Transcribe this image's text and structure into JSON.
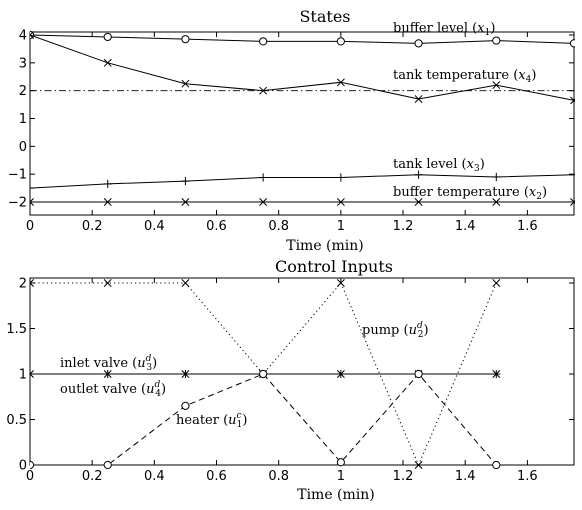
{
  "chart_data": [
    {
      "type": "line",
      "title": "States",
      "xlabel": "Time (min)",
      "ylabel": "",
      "xlim": [
        0,
        1.75
      ],
      "ylim": [
        -2.5,
        4.3
      ],
      "xticks": [
        "0",
        "0.2",
        "0.4",
        "0.6",
        "0.8",
        "1",
        "1.2",
        "1.4",
        "1.6"
      ],
      "yticks": [
        "4",
        "3",
        "2",
        "1",
        "0",
        "−1",
        "−2"
      ],
      "reference_lines": [
        {
          "y": 2,
          "style": "dashdot"
        }
      ],
      "series": [
        {
          "name": "buffer level (x1)",
          "marker": "circle",
          "x": [
            0,
            0.25,
            0.5,
            0.75,
            1.0,
            1.25,
            1.5,
            1.75
          ],
          "y": [
            4.0,
            3.93,
            3.85,
            3.77,
            3.77,
            3.7,
            3.8,
            3.7
          ]
        },
        {
          "name": "tank temperature (x4)",
          "marker": "x",
          "x": [
            0,
            0.25,
            0.5,
            0.75,
            1.0,
            1.25,
            1.5,
            1.75
          ],
          "y": [
            4.0,
            3.0,
            2.25,
            2.0,
            2.3,
            1.7,
            2.2,
            1.65
          ]
        },
        {
          "name": "tank level (x3)",
          "marker": "plus",
          "x": [
            0,
            0.25,
            0.5,
            0.75,
            1.0,
            1.25,
            1.5,
            1.75
          ],
          "y": [
            -1.5,
            -1.35,
            -1.25,
            -1.12,
            -1.12,
            -1.02,
            -1.1,
            -1.02
          ]
        },
        {
          "name": "buffer temperature (x2)",
          "marker": "x",
          "x": [
            0,
            0.25,
            0.5,
            0.75,
            1.0,
            1.25,
            1.5,
            1.75
          ],
          "y": [
            -2.0,
            -2.0,
            -2.0,
            -2.0,
            -2.0,
            -2.0,
            -2.0,
            -2.0
          ]
        }
      ]
    },
    {
      "type": "line",
      "title": "Control Inputs",
      "xlabel": "Time (min)",
      "ylabel": "",
      "xlim": [
        0,
        1.75
      ],
      "ylim": [
        0,
        2.1
      ],
      "xticks": [
        "0",
        "0.2",
        "0.4",
        "0.6",
        "0.8",
        "1",
        "1.2",
        "1.4",
        "1.6"
      ],
      "yticks": [
        "2",
        "1.5",
        "1",
        "0.5",
        "0"
      ],
      "series": [
        {
          "name": "pump (u2d)",
          "style": "dotted",
          "marker": "x",
          "x": [
            0,
            0.25,
            0.5,
            0.75,
            1.0,
            1.25,
            1.5
          ],
          "y": [
            2,
            2,
            2,
            1,
            2,
            0,
            2
          ]
        },
        {
          "name": "inlet valve (u3d)",
          "style": "solid",
          "marker": "x",
          "x": [
            0,
            0.25,
            0.5,
            0.75,
            1.0,
            1.25,
            1.5
          ],
          "y": [
            1,
            1,
            1,
            1,
            1,
            1,
            1
          ]
        },
        {
          "name": "outlet valve (u4d)",
          "style": "solid",
          "marker": "plus",
          "x": [
            0,
            0.25,
            0.5,
            0.75,
            1.0,
            1.25,
            1.5
          ],
          "y": [
            1,
            1,
            1,
            1,
            1,
            1,
            1
          ]
        },
        {
          "name": "heater (u1c)",
          "style": "dashed",
          "marker": "circle",
          "x": [
            0,
            0.25,
            0.5,
            0.75,
            1.0,
            1.25,
            1.5
          ],
          "y": [
            0,
            0,
            0.65,
            1.0,
            0.03,
            1.0,
            0
          ]
        }
      ]
    }
  ],
  "annotations": {
    "top": [
      {
        "base": "buffer level (",
        "var": "x",
        "sub": "1",
        "sup": "",
        "tail": ")"
      },
      {
        "base": "tank temperature (",
        "var": "x",
        "sub": "4",
        "sup": "",
        "tail": ")"
      },
      {
        "base": "tank level (",
        "var": "x",
        "sub": "3",
        "sup": "",
        "tail": ")"
      },
      {
        "base": "buffer temperature (",
        "var": "x",
        "sub": "2",
        "sup": "",
        "tail": ")"
      }
    ],
    "bottom": [
      {
        "base": "pump (",
        "var": "u",
        "sub": "2",
        "sup": "d",
        "tail": ")"
      },
      {
        "base": "inlet valve (",
        "var": "u",
        "sub": "3",
        "sup": "d",
        "tail": ")"
      },
      {
        "base": "outlet valve (",
        "var": "u",
        "sub": "4",
        "sup": "d",
        "tail": ")"
      },
      {
        "base": "heater (",
        "var": "u",
        "sub": "1",
        "sup": "c",
        "tail": ")"
      }
    ]
  }
}
